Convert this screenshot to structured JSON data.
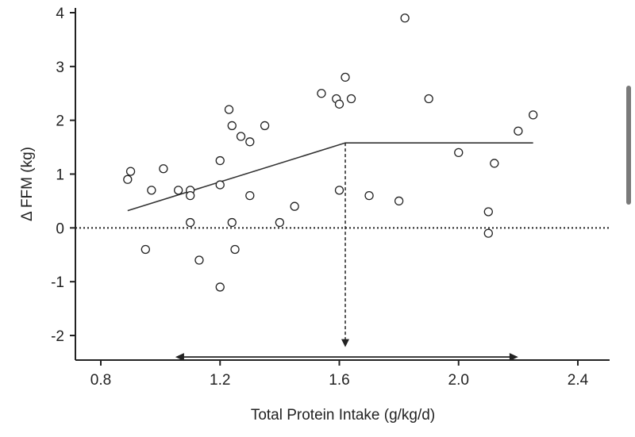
{
  "chart_data": {
    "type": "scatter",
    "title": "",
    "xlabel": "Total Protein Intake (g/kg/d)",
    "ylabel": "Δ FFM (kg)",
    "xlim": [
      0.8,
      2.45
    ],
    "ylim": [
      -2.5,
      4.1
    ],
    "x_ticks": [
      0.8,
      1.2,
      1.6,
      2.0,
      2.4
    ],
    "x_tick_labels": [
      "0.8",
      "1.2",
      "1.6",
      "2.0",
      "2.4"
    ],
    "y_ticks": [
      -2,
      -1,
      0,
      1,
      2,
      3,
      4
    ],
    "y_tick_labels": [
      "-2",
      "-1",
      "0",
      "1",
      "2",
      "3",
      "4"
    ],
    "grid": false,
    "points": [
      {
        "x": 0.89,
        "y": 0.9
      },
      {
        "x": 0.9,
        "y": 1.05
      },
      {
        "x": 0.95,
        "y": -0.4
      },
      {
        "x": 0.97,
        "y": 0.7
      },
      {
        "x": 1.01,
        "y": 1.1
      },
      {
        "x": 1.06,
        "y": 0.7
      },
      {
        "x": 1.1,
        "y": 0.7
      },
      {
        "x": 1.1,
        "y": 0.6
      },
      {
        "x": 1.1,
        "y": 0.1
      },
      {
        "x": 1.13,
        "y": -0.6
      },
      {
        "x": 1.2,
        "y": 1.25
      },
      {
        "x": 1.2,
        "y": 0.8
      },
      {
        "x": 1.2,
        "y": -1.1
      },
      {
        "x": 1.23,
        "y": 2.2
      },
      {
        "x": 1.24,
        "y": 1.9
      },
      {
        "x": 1.24,
        "y": 0.1
      },
      {
        "x": 1.25,
        "y": -0.4
      },
      {
        "x": 1.27,
        "y": 1.7
      },
      {
        "x": 1.3,
        "y": 1.6
      },
      {
        "x": 1.3,
        "y": 0.6
      },
      {
        "x": 1.35,
        "y": 1.9
      },
      {
        "x": 1.4,
        "y": 0.1
      },
      {
        "x": 1.45,
        "y": 0.4
      },
      {
        "x": 1.54,
        "y": 2.5
      },
      {
        "x": 1.59,
        "y": 2.4
      },
      {
        "x": 1.6,
        "y": 2.3
      },
      {
        "x": 1.6,
        "y": 0.7
      },
      {
        "x": 1.62,
        "y": 2.8
      },
      {
        "x": 1.64,
        "y": 2.4
      },
      {
        "x": 1.7,
        "y": 0.6
      },
      {
        "x": 1.8,
        "y": 0.5
      },
      {
        "x": 1.82,
        "y": 3.9
      },
      {
        "x": 1.9,
        "y": 2.4
      },
      {
        "x": 2.0,
        "y": 1.4
      },
      {
        "x": 2.1,
        "y": 0.3
      },
      {
        "x": 2.1,
        "y": -0.1
      },
      {
        "x": 2.12,
        "y": 1.2
      },
      {
        "x": 2.2,
        "y": 1.8
      },
      {
        "x": 2.25,
        "y": 2.1
      }
    ],
    "fit_line": [
      {
        "x": 0.89,
        "y": 0.32
      },
      {
        "x": 1.62,
        "y": 1.58
      },
      {
        "x": 2.25,
        "y": 1.58
      }
    ],
    "zero_line_y": 0,
    "breakpoint": {
      "x": 1.62,
      "y_from": 1.58,
      "y_to": -2.2
    },
    "range_arrow": {
      "x_from": 1.05,
      "x_to": 2.2,
      "y": -2.4
    }
  }
}
